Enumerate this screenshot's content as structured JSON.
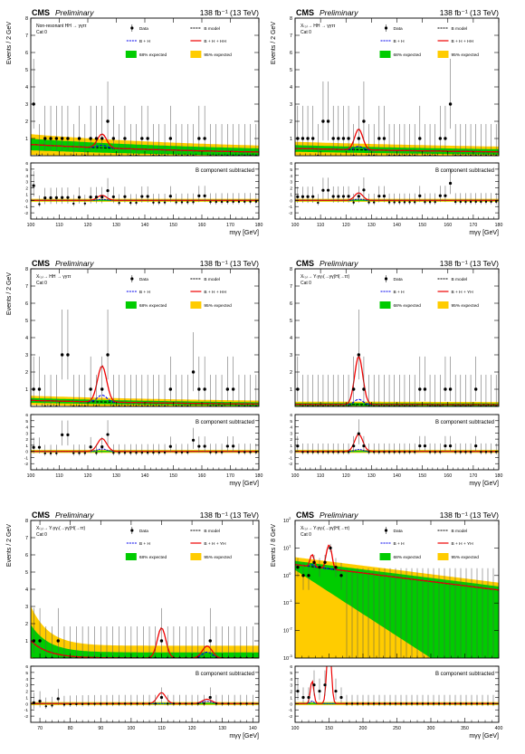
{
  "figure": {
    "cms_label": "CMS",
    "prelim_label": "Preliminary",
    "lumi_label": "138 fb⁻¹ (13 TeV)",
    "sub_label": "B component subtracted",
    "legend": {
      "data": "Data",
      "bmodel": "B model",
      "bh": "B + H",
      "bhh": "B + H + HH",
      "bhyh": "B + H + YH",
      "band1": "68% expected",
      "band2": "95% expected"
    },
    "colors": {
      "band1": "#00cc00",
      "band2": "#ffcc00",
      "signal": "#ee0000",
      "bh": "#0000ee",
      "data": "#000000"
    }
  },
  "chart_data": [
    {
      "type": "line",
      "panel": "top-left",
      "ylabel": "Events / 2 GeV",
      "xlabel": "mγγ [GeV]",
      "title_line1": "Non-resonant HH → γγττ",
      "title_line2": "Cat 0",
      "legend_signal": "bhh",
      "xlim": [
        100,
        180
      ],
      "xticks": [
        100,
        110,
        120,
        130,
        140,
        150,
        160,
        170,
        180
      ],
      "ylim": [
        0,
        8
      ],
      "yticks": [
        0,
        1,
        2,
        3,
        4,
        5,
        6,
        7,
        8
      ],
      "sub_ylim": [
        -3,
        6
      ],
      "sub_yticks": [
        -2,
        -1,
        0,
        1,
        2,
        3,
        4,
        5,
        6
      ],
      "bkg": {
        "shape": "exp",
        "a": 0.65,
        "b": 0.014,
        "x0": 100
      },
      "bands": {
        "s1": 0.28,
        "s2": 0.5
      },
      "peaks": [
        {
          "mean": 125,
          "sigma": 1.6,
          "bh": 0.15,
          "sig": 0.65
        }
      ],
      "points": [
        [
          101,
          3
        ],
        [
          106,
          1
        ],
        [
          109,
          1
        ],
        [
          112,
          1
        ],
        [
          117,
          1
        ],
        [
          121,
          1
        ],
        [
          123,
          1
        ],
        [
          125,
          1
        ],
        [
          127,
          2
        ],
        [
          129,
          1
        ],
        [
          133,
          1
        ],
        [
          140,
          1
        ],
        [
          149,
          1
        ],
        [
          160,
          1
        ]
      ]
    },
    {
      "type": "line",
      "panel": "top-right",
      "ylabel": "Events / 2 GeV",
      "xlabel": "mγγ [GeV]",
      "title_line1": "X₍₀₎→ HH → γγττ",
      "title_line2": "Cat 0",
      "legend_signal": "bhh",
      "xlim": [
        100,
        180
      ],
      "xticks": [
        100,
        110,
        120,
        130,
        140,
        150,
        160,
        170,
        180
      ],
      "ylim": [
        0,
        8
      ],
      "yticks": [
        0,
        1,
        2,
        3,
        4,
        5,
        6,
        7,
        8
      ],
      "sub_ylim": [
        -3,
        6
      ],
      "sub_yticks": [
        -2,
        -1,
        0,
        1,
        2,
        3,
        4,
        5,
        6
      ],
      "bkg": {
        "shape": "exp",
        "a": 0.42,
        "b": 0.008,
        "x0": 100
      },
      "bands": {
        "s1": 0.2,
        "s2": 0.4
      },
      "peaks": [
        {
          "mean": 125,
          "sigma": 1.6,
          "bh": 0.2,
          "sig": 1.0
        }
      ],
      "points": [
        [
          101,
          1
        ],
        [
          104,
          1
        ],
        [
          107,
          1
        ],
        [
          112,
          2
        ],
        [
          116,
          1
        ],
        [
          118,
          1
        ],
        [
          121,
          1
        ],
        [
          125,
          1
        ],
        [
          127,
          2
        ],
        [
          134,
          1
        ],
        [
          149,
          1
        ],
        [
          158,
          1
        ],
        [
          161,
          3
        ]
      ]
    },
    {
      "type": "line",
      "panel": "middle-left",
      "ylabel": "Events / 2 GeV",
      "xlabel": "mγγ [GeV]",
      "title_line1": "X₍₀₎→ HH → γγττ",
      "title_line2": "Cat 0",
      "legend_signal": "bhh",
      "xlim": [
        100,
        180
      ],
      "xticks": [
        100,
        110,
        120,
        130,
        140,
        150,
        160,
        170,
        180
      ],
      "ylim": [
        0,
        8
      ],
      "yticks": [
        0,
        1,
        2,
        3,
        4,
        5,
        6,
        7,
        8
      ],
      "sub_ylim": [
        -3,
        6
      ],
      "sub_yticks": [
        -2,
        -1,
        0,
        1,
        2,
        3,
        4,
        5,
        6
      ],
      "bkg": {
        "shape": "exp",
        "a": 0.35,
        "b": 0.012,
        "x0": 100
      },
      "bands": {
        "s1": 0.15,
        "s2": 0.3
      },
      "peaks": [
        {
          "mean": 125,
          "sigma": 1.6,
          "bh": 0.4,
          "sig": 1.7
        }
      ],
      "points": [
        [
          102,
          1
        ],
        [
          112,
          3
        ],
        [
          121,
          1
        ],
        [
          125,
          1
        ],
        [
          127,
          3
        ],
        [
          149,
          1
        ],
        [
          158,
          2
        ],
        [
          160,
          1
        ],
        [
          170,
          1
        ]
      ]
    },
    {
      "type": "line",
      "panel": "middle-right",
      "ylabel": "",
      "xlabel": "mγγ [GeV]",
      "title_line1": "X₍₀₎→ Y₍γγ₎(→γγ)H(→ττ)",
      "title_line2": "Cat 0",
      "legend_signal": "bhyh",
      "xlim": [
        100,
        180
      ],
      "xticks": [
        100,
        110,
        120,
        130,
        140,
        150,
        160,
        170,
        180
      ],
      "ylim": [
        0,
        8
      ],
      "yticks": [
        0,
        1,
        2,
        3,
        4,
        5,
        6,
        7,
        8
      ],
      "sub_ylim": [
        -3,
        6
      ],
      "sub_yticks": [
        -2,
        -1,
        0,
        1,
        2,
        3,
        4,
        5,
        6
      ],
      "bkg": {
        "shape": "exp",
        "a": 0.12,
        "b": 0.002,
        "x0": 100
      },
      "bands": {
        "s1": 0.12,
        "s2": 0.24
      },
      "peaks": [
        {
          "mean": 125,
          "sigma": 1.6,
          "bh": 0.3,
          "sig": 2.5
        }
      ],
      "points": [
        [
          101,
          1
        ],
        [
          123,
          1
        ],
        [
          125,
          3
        ],
        [
          127,
          1
        ],
        [
          150,
          1
        ],
        [
          160,
          1
        ],
        [
          171,
          1
        ]
      ]
    },
    {
      "type": "line",
      "panel": "bottom-left",
      "ylabel": "Events / 2 GeV",
      "xlabel": "mγγ [GeV]",
      "title_line1": "X₍₀₎→ Y₍γγ₎(→γγ)H(→ττ)",
      "title_line2": "Cat 0",
      "legend_signal": "bhyh",
      "xlim": [
        67,
        142
      ],
      "xticks": [
        70,
        80,
        90,
        100,
        110,
        120,
        130,
        140
      ],
      "ylim": [
        0,
        8
      ],
      "yticks": [
        0,
        1,
        2,
        3,
        4,
        5,
        6,
        7,
        8
      ],
      "sub_ylim": [
        -3,
        6
      ],
      "sub_yticks": [
        -2,
        -1,
        0,
        1,
        2,
        3,
        4,
        5,
        6
      ],
      "bkg": {
        "shape": "exp",
        "a": 0.85,
        "b": 0.17,
        "x0": 68
      },
      "bands": {
        "s1": 0.6,
        "s2": 1.3
      },
      "peaks": [
        {
          "mean": 110,
          "sigma": 1.4,
          "bh": 0.0,
          "sig": 1.75
        },
        {
          "mean": 125,
          "sigma": 1.6,
          "bh": 0.35,
          "sig": 0.35
        }
      ],
      "points": [
        [
          68,
          1
        ],
        [
          70,
          1
        ],
        [
          76,
          1
        ],
        [
          110,
          1
        ],
        [
          126,
          1
        ]
      ]
    },
    {
      "type": "line",
      "panel": "bottom-right",
      "ylabel": "Events / 8 GeV",
      "xlabel": "mγγ [GeV]",
      "title_line1": "X₍₀₎→ Y₍γγ₎(→γγ)H(→ττ)",
      "title_line2": "Cat 0",
      "legend_signal": "bhyh",
      "xlim": [
        100,
        400
      ],
      "xticks": [
        100,
        150,
        200,
        250,
        300,
        350,
        400
      ],
      "log_y": true,
      "ylim": [
        0.001,
        100
      ],
      "sub_ylim": [
        -3,
        6
      ],
      "sub_yticks": [
        -2,
        -1,
        0,
        1,
        2,
        3,
        4,
        5,
        6
      ],
      "bkg": {
        "shape": "exp",
        "a": 2.5,
        "b": 0.0071,
        "x0": 100
      },
      "bands": {
        "log": true
      },
      "peaks": [
        {
          "mean": 125,
          "sigma": 2.5,
          "bh": 0.4,
          "sig": 3.3
        },
        {
          "mean": 150,
          "sigma": 3.0,
          "bh": 0.0,
          "sig": 11.0
        }
      ],
      "points": [
        [
          104,
          2
        ],
        [
          112,
          1
        ],
        [
          124,
          1
        ],
        [
          128,
          3
        ],
        [
          136,
          2
        ],
        [
          148,
          3
        ],
        [
          152,
          10
        ],
        [
          160,
          2
        ],
        [
          168,
          1
        ]
      ]
    }
  ]
}
